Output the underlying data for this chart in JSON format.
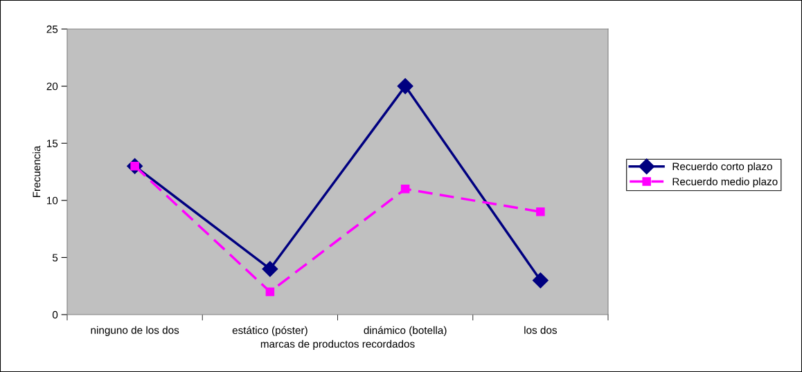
{
  "chart_data": {
    "type": "line",
    "xlabel": "marcas de productos recordados",
    "ylabel": "Frecuencia",
    "categories": [
      "ninguno de los dos",
      "estático (póster)",
      "dinámico (botella)",
      "los dos"
    ],
    "series": [
      {
        "name": "Recuerdo corto plazo",
        "color": "#000080",
        "values": [
          13,
          4,
          20,
          3
        ],
        "marker": "diamond",
        "line_style": "solid"
      },
      {
        "name": "Recuerdo medio plazo",
        "color": "#ff00ff",
        "values": [
          13,
          2,
          11,
          9
        ],
        "marker": "square",
        "line_style": "dashed"
      }
    ],
    "ylim": [
      0,
      25
    ],
    "yticks": [
      0,
      5,
      10,
      15,
      20,
      25
    ],
    "legend": "right"
  }
}
